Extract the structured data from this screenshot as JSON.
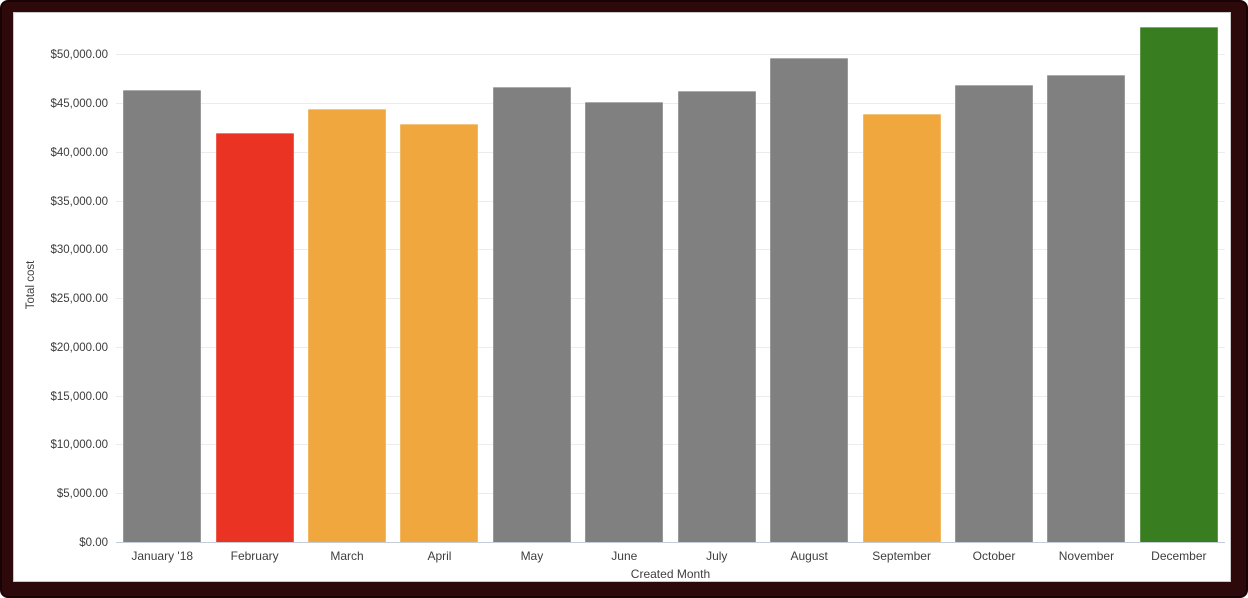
{
  "frame": {
    "background_color": "#2d090b"
  },
  "chart_data": {
    "type": "bar",
    "title": "",
    "xlabel": "Created Month",
    "ylabel": "Total cost",
    "categories": [
      "January '18",
      "February",
      "March",
      "April",
      "May",
      "June",
      "July",
      "August",
      "September",
      "October",
      "November",
      "December"
    ],
    "values": [
      46400,
      42000,
      44500,
      43000,
      46700,
      45200,
      46300,
      49700,
      44000,
      47000,
      48000,
      52900
    ],
    "bar_colors": [
      "#808080",
      "#EA3323",
      "#F0A73D",
      "#F0A73D",
      "#808080",
      "#808080",
      "#808080",
      "#808080",
      "#F0A73D",
      "#808080",
      "#808080",
      "#397D21"
    ],
    "y_ticks": [
      0,
      5000,
      10000,
      15000,
      20000,
      25000,
      30000,
      35000,
      40000,
      45000,
      50000
    ],
    "y_tick_labels": [
      "$0.00",
      "$5,000.00",
      "$10,000.00",
      "$15,000.00",
      "$20,000.00",
      "$25,000.00",
      "$30,000.00",
      "$35,000.00",
      "$40,000.00",
      "$45,000.00",
      "$50,000.00"
    ],
    "ylim": [
      0,
      52900
    ],
    "grid": true,
    "legend": "none",
    "colors": {
      "bar_default": "#808080",
      "bar_low": "#EA3323",
      "bar_warn": "#F0A73D",
      "bar_high": "#397D21",
      "gridline": "#ececec",
      "baseline": "#c6ccd5",
      "text": "#3c3c3c"
    }
  }
}
